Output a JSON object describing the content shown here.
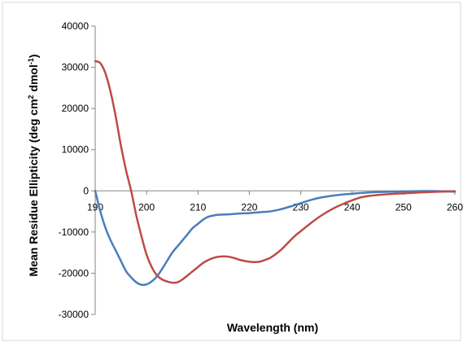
{
  "chart_data": {
    "type": "line",
    "title": "",
    "xlabel": "Wavelength (nm)",
    "ylabel_main": "Mean Residue Ellipticity (deg cm",
    "ylabel_sup1": "2",
    "ylabel_mid": " dmol",
    "ylabel_sup2": "-1",
    "ylabel_end": ")",
    "xlim": [
      190,
      260
    ],
    "ylim": [
      -30000,
      40000
    ],
    "x_ticks": [
      "190",
      "200",
      "210",
      "220",
      "230",
      "240",
      "250",
      "260"
    ],
    "y_ticks": [
      "-30000",
      "-20000",
      "-10000",
      "0",
      "10000",
      "20000",
      "30000",
      "40000"
    ],
    "grid": false,
    "legend": "none",
    "series": [
      {
        "color": "#4a7ebb",
        "x": [
          190,
          191,
          192,
          193,
          194,
          195,
          196,
          197,
          198,
          199,
          200,
          201,
          202,
          203,
          204,
          205,
          206,
          207,
          208,
          209,
          210,
          211,
          212,
          213,
          214,
          216,
          218,
          220,
          222,
          224,
          226,
          228,
          230,
          232,
          234,
          236,
          238,
          240,
          242,
          245,
          250,
          255,
          260
        ],
        "y": [
          0,
          -5000,
          -9000,
          -12000,
          -14500,
          -17000,
          -19500,
          -21000,
          -22200,
          -22800,
          -22700,
          -22000,
          -20800,
          -19000,
          -17000,
          -15000,
          -13500,
          -12000,
          -10500,
          -9000,
          -8000,
          -7000,
          -6300,
          -6000,
          -5800,
          -5700,
          -5500,
          -5400,
          -5200,
          -5000,
          -4500,
          -3800,
          -3000,
          -2200,
          -1600,
          -1200,
          -900,
          -700,
          -500,
          -300,
          -150,
          -50,
          -200
        ]
      },
      {
        "color": "#be4b48",
        "x": [
          190,
          191,
          192,
          193,
          194,
          195,
          196,
          197,
          198,
          199,
          200,
          201,
          202,
          203,
          204,
          205,
          206,
          207,
          208,
          209,
          210,
          211,
          212,
          213,
          214,
          215,
          216,
          217,
          218,
          219,
          220,
          221,
          222,
          223,
          224,
          225,
          226,
          227,
          228,
          229,
          230,
          232,
          234,
          236,
          238,
          240,
          242,
          245,
          250,
          255,
          260
        ],
        "y": [
          31500,
          31000,
          28500,
          24000,
          18000,
          11000,
          5000,
          0,
          -6000,
          -11000,
          -15500,
          -18500,
          -20500,
          -21500,
          -22000,
          -22300,
          -22200,
          -21500,
          -20500,
          -19500,
          -18500,
          -17500,
          -16800,
          -16300,
          -16000,
          -15900,
          -16000,
          -16300,
          -16700,
          -17000,
          -17200,
          -17300,
          -17200,
          -16800,
          -16300,
          -15500,
          -14500,
          -13300,
          -12000,
          -10800,
          -9800,
          -7800,
          -6000,
          -4500,
          -3300,
          -2300,
          -1500,
          -1000,
          -600,
          -300,
          -100
        ]
      }
    ]
  }
}
